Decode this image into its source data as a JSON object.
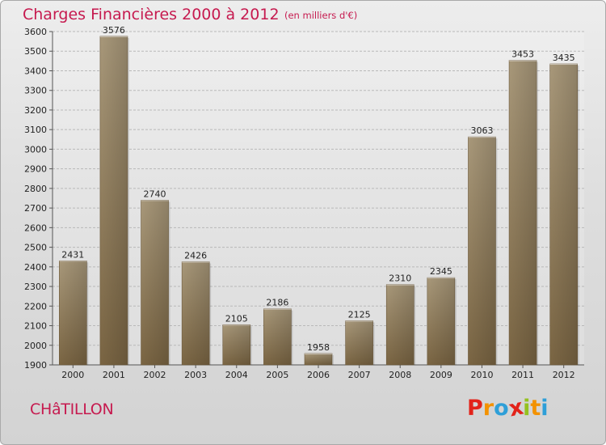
{
  "header": {
    "title": "Charges Financières 2000 à 2012",
    "subtitle": "(en milliers d'€)"
  },
  "footer": {
    "city": "CHâTILLON",
    "brand": [
      "P",
      "r",
      "o",
      "x",
      "i",
      "t",
      "i"
    ],
    "brand_colors": [
      "#e2231a",
      "#f39200",
      "#2e9fd8",
      "#e2231a",
      "#95c11f",
      "#f39200",
      "#2e9fd8"
    ]
  },
  "chart_data": {
    "type": "bar",
    "title": "Charges Financières 2000 à 2012",
    "subtitle": "(en milliers d'€)",
    "categories": [
      "2000",
      "2001",
      "2002",
      "2003",
      "2004",
      "2005",
      "2006",
      "2007",
      "2008",
      "2009",
      "2010",
      "2011",
      "2012"
    ],
    "values": [
      2431,
      3576,
      2740,
      2426,
      2105,
      2186,
      1958,
      2125,
      2310,
      2345,
      3063,
      3453,
      3435
    ],
    "ylim": [
      1900,
      3600
    ],
    "yticks": [
      1900,
      2000,
      2100,
      2200,
      2300,
      2400,
      2500,
      2600,
      2700,
      2800,
      2900,
      3000,
      3100,
      3200,
      3300,
      3400,
      3500,
      3600
    ],
    "grid": true,
    "bar_color": "#8f7b5a"
  }
}
